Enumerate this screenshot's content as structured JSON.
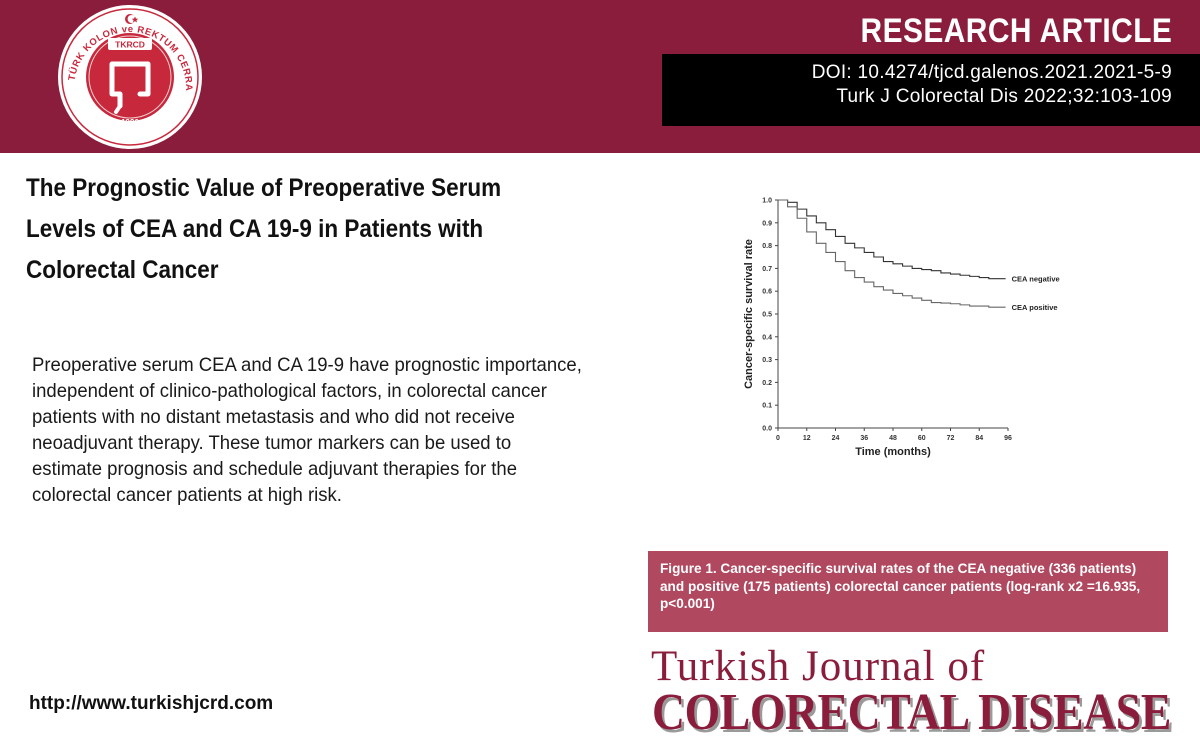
{
  "header": {
    "article_type": "RESEARCH ARTICLE",
    "doi": "DOI: 10.4274/tjcd.galenos.2021.2021-5-9",
    "citation": "Turk J Colorectal Dis 2022;32:103-109"
  },
  "logo": {
    "abbreviation": "TKRCD",
    "society_name": "TÜRK KOLON ve REKTUM CERRAHİSİ DERNEĞİ",
    "year": "1990"
  },
  "article": {
    "title": "The Prognostic Value of Preoperative Serum Levels of CEA and CA 19-9 in Patients with Colorectal Cancer",
    "summary": "Preoperative serum CEA and CA 19-9 have prognostic importance, independent of clinico-pathological factors, in colorectal cancer patients with no distant metastasis and who did not receive neoadjuvant therapy. These tumor markers can be used to estimate prognosis and schedule adjuvant therapies for the colorectal cancer patients at high risk.",
    "url": "http://www.turkishjcrd.com"
  },
  "figure": {
    "caption": "Figure 1. Cancer-specific survival rates of the CEA negative (336 patients) and positive (175 patients) colorectal cancer patients (log-rank x2 =16.935, p<0.001)"
  },
  "journal": {
    "name_line1": "Turkish Journal of",
    "name_line2": "COLORECTAL DISEASE"
  },
  "colors": {
    "brand": "#8b1d3c",
    "caption_bg": "#b0485f"
  },
  "chart_data": {
    "type": "line",
    "title": "",
    "xlabel": "Time (months)",
    "ylabel": "Cancer-specific survival rate",
    "xlim": [
      0,
      96
    ],
    "ylim": [
      0,
      1
    ],
    "x_ticks": [
      0,
      12,
      24,
      36,
      48,
      60,
      72,
      84,
      96
    ],
    "x_tick_labels": [
      "0",
      "12",
      "24",
      "36",
      "48",
      "60",
      "72",
      "84",
      "96"
    ],
    "y_ticks": [
      0,
      0.1,
      0.2,
      0.3,
      0.4,
      0.5,
      0.6,
      0.7,
      0.8,
      0.9,
      1.0
    ],
    "y_tick_labels": [
      "0.0",
      "0.1",
      "0.2",
      "0.3",
      "0.4",
      "0.5",
      "0.6",
      "0.7",
      "0.8",
      "0.9",
      "1.0"
    ],
    "grid": false,
    "series": [
      {
        "name": "CEA negative",
        "color": "#333333",
        "x": [
          0,
          4,
          8,
          12,
          16,
          20,
          24,
          28,
          32,
          36,
          40,
          44,
          48,
          52,
          56,
          60,
          64,
          68,
          72,
          76,
          80,
          84,
          88,
          92
        ],
        "y": [
          1.0,
          0.99,
          0.96,
          0.93,
          0.9,
          0.87,
          0.84,
          0.81,
          0.79,
          0.77,
          0.75,
          0.73,
          0.72,
          0.71,
          0.7,
          0.695,
          0.69,
          0.68,
          0.675,
          0.67,
          0.665,
          0.66,
          0.655,
          0.655
        ],
        "end_label": "CEA negative"
      },
      {
        "name": "CEA positive",
        "color": "#666666",
        "x": [
          0,
          4,
          8,
          12,
          16,
          20,
          24,
          28,
          32,
          36,
          40,
          44,
          48,
          52,
          56,
          60,
          64,
          68,
          72,
          76,
          80,
          84,
          88,
          92
        ],
        "y": [
          1.0,
          0.97,
          0.92,
          0.86,
          0.81,
          0.77,
          0.73,
          0.69,
          0.66,
          0.64,
          0.62,
          0.605,
          0.59,
          0.58,
          0.57,
          0.56,
          0.55,
          0.548,
          0.545,
          0.54,
          0.535,
          0.535,
          0.53,
          0.53
        ],
        "end_label": "CEA positive"
      }
    ]
  }
}
